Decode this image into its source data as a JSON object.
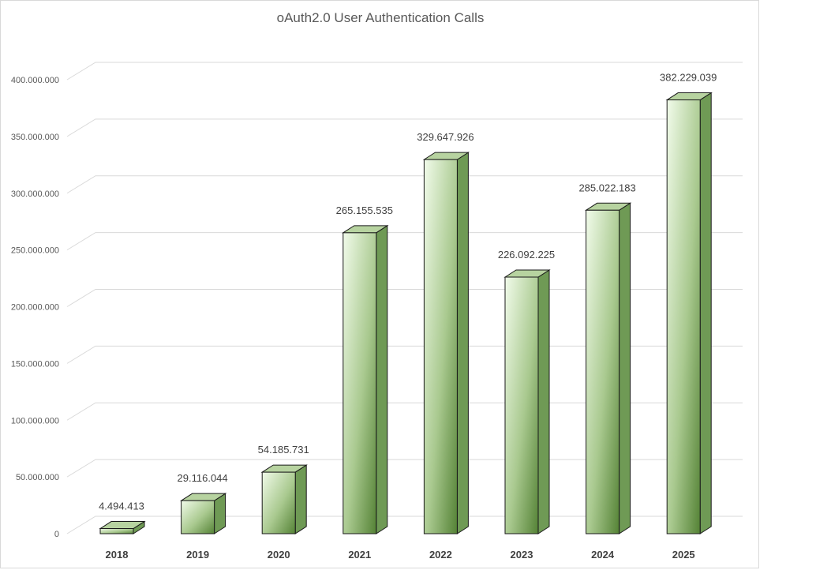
{
  "chart_data": {
    "type": "bar",
    "title": "oAuth2.0 User Authentication Calls",
    "xlabel": "",
    "ylabel": "",
    "categories": [
      "2018",
      "2019",
      "2020",
      "2021",
      "2022",
      "2023",
      "2024",
      "2025"
    ],
    "values": [
      4494413,
      29116044,
      54185731,
      265155535,
      329647926,
      226092225,
      285022183,
      382229039
    ],
    "value_labels": [
      "4.494.413",
      "29.116.044",
      "54.185.731",
      "265.155.535",
      "329.647.926",
      "226.092.225",
      "285.022.183",
      "382.229.039"
    ],
    "ylim": [
      0,
      400000000
    ],
    "yticks": [
      0,
      50000000,
      100000000,
      150000000,
      200000000,
      250000000,
      300000000,
      350000000,
      400000000
    ],
    "ytick_labels": [
      "0",
      "50.000.000",
      "100.000.000",
      "150.000.000",
      "200.000.000",
      "250.000.000",
      "300.000.000",
      "350.000.000",
      "400.000.000"
    ],
    "grid": true,
    "legend": "none",
    "colors": {
      "light": "#f1fbea",
      "mid": "#a9c98f",
      "dark": "#548235",
      "top": "#b7d3a0",
      "side": "#6f9a55"
    }
  }
}
